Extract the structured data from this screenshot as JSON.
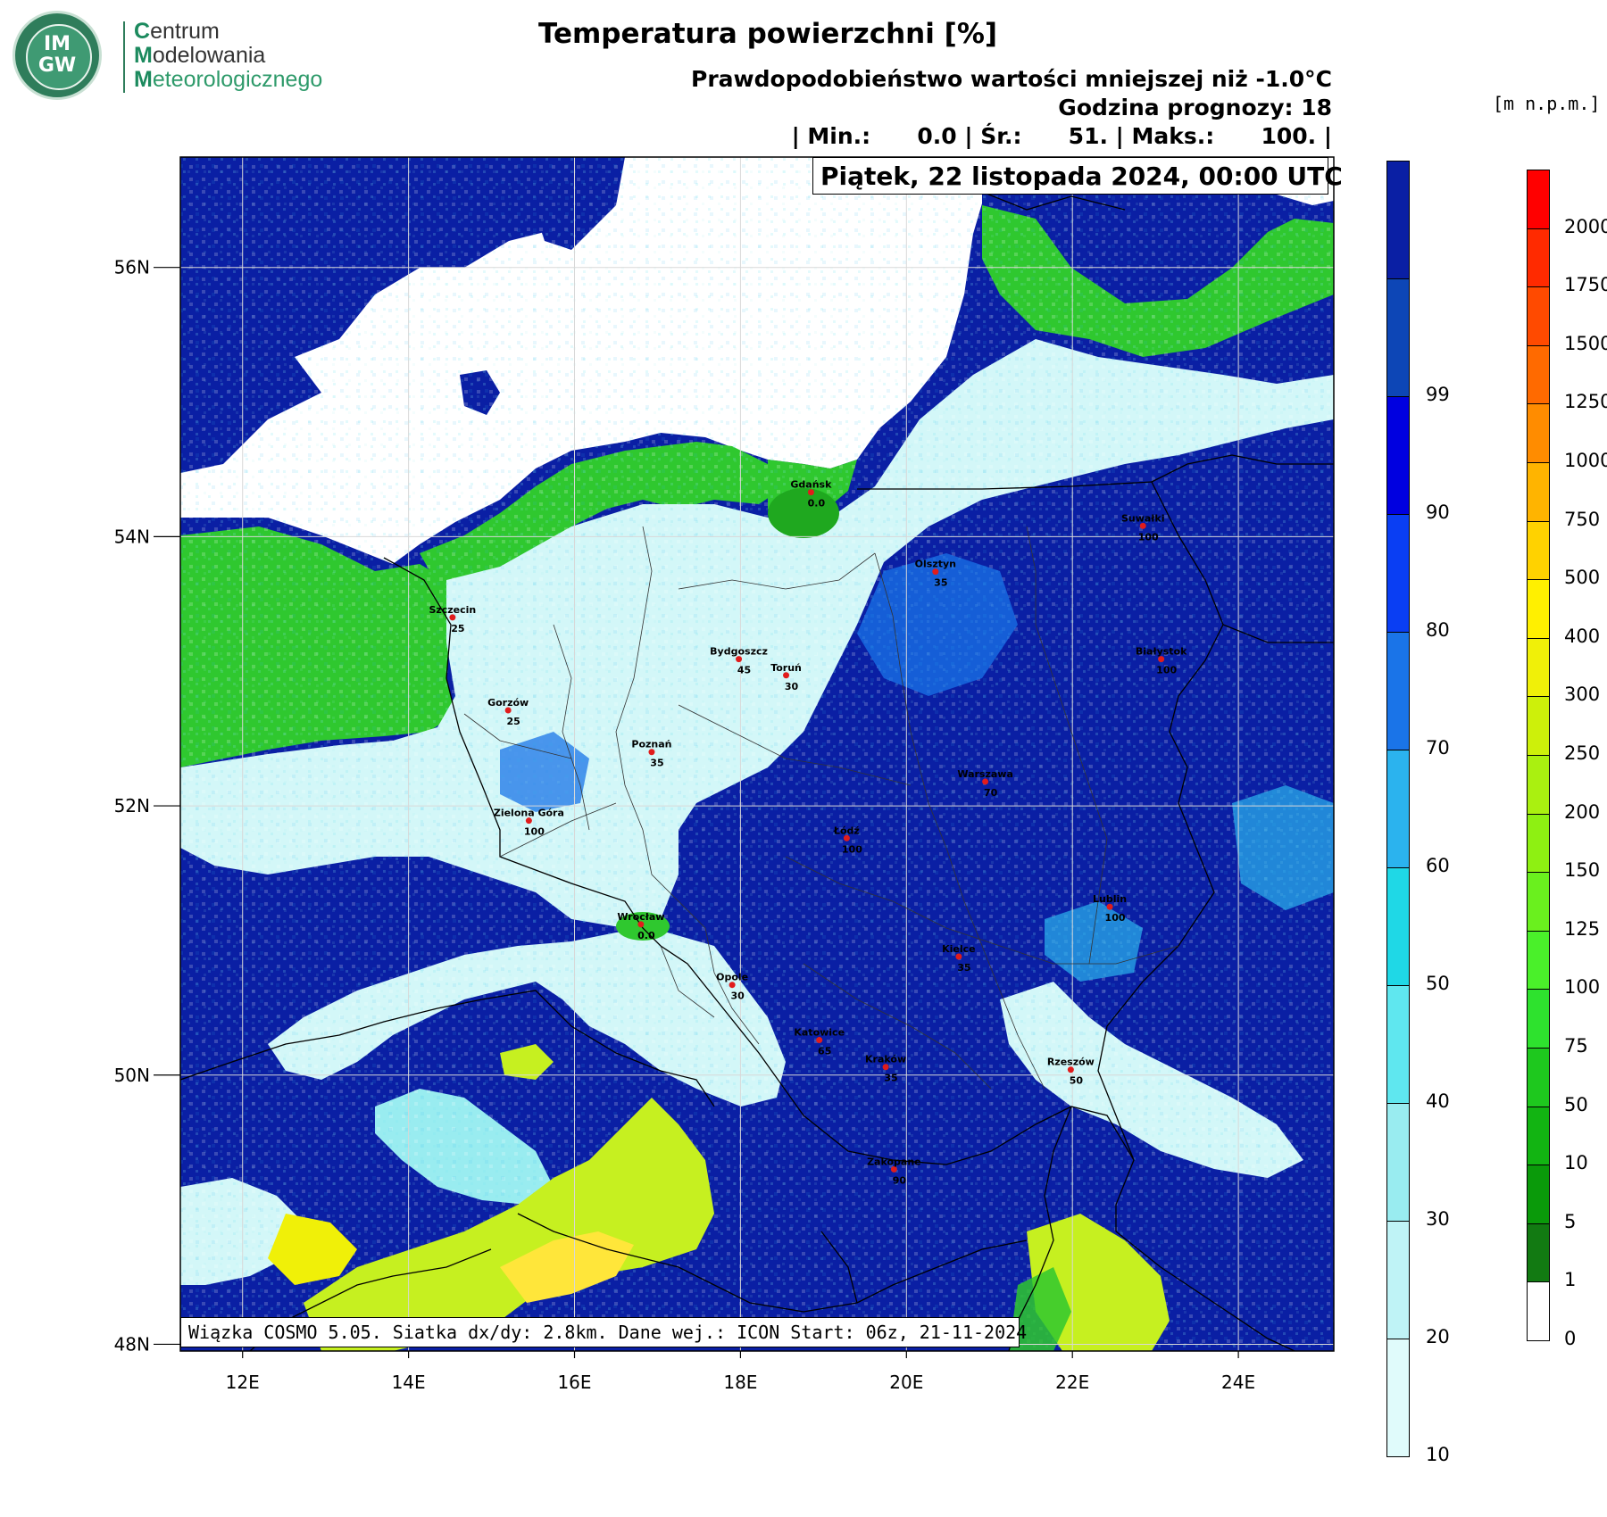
{
  "logo": {
    "mark_line1": "IM",
    "mark_line2": "GW",
    "line1_initial": "C",
    "line1_rest": "entrum",
    "line2_initial": "M",
    "line2_rest": "odelowania",
    "line3_initial": "M",
    "line3_rest": "eteorologicznego"
  },
  "header": {
    "title": "Temperatura powierzchni [%]",
    "subtitle": "Prawdopodobieństwo wartości mniejszej niż -1.0°C",
    "forecast_hour": "Godzina prognozy: 18",
    "stats": "| Min.:      0.0 | Śr.:      51. | Maks.:      100. |",
    "date": "Piątek, 22 listopada 2024, 00:00 UTC"
  },
  "footer": {
    "info": "Wiązka COSMO 5.05. Siatka dx/dy: 2.8km. Dane wej.: ICON Start: 06z, 21-11-2024"
  },
  "units_label": "[m n.p.m.]",
  "axes": {
    "lat_labels": [
      "56N",
      "54N",
      "52N",
      "50N",
      "48N"
    ],
    "lat_values": [
      56,
      54,
      52,
      50,
      48
    ],
    "lon_labels": [
      "12E",
      "14E",
      "16E",
      "18E",
      "20E",
      "22E",
      "24E"
    ],
    "lon_values": [
      12,
      14,
      16,
      18,
      20,
      22,
      24
    ],
    "lon_range": [
      11.25,
      25.15
    ],
    "lat_range": [
      47.95,
      56.82
    ]
  },
  "cities": [
    {
      "name": "Gdańsk",
      "value": "0.0",
      "lon": 18.85,
      "lat": 54.33
    },
    {
      "name": "Suwałki",
      "value": "100",
      "lon": 22.85,
      "lat": 54.08
    },
    {
      "name": "Olsztyn",
      "value": "35",
      "lon": 20.35,
      "lat": 53.74
    },
    {
      "name": "Szczecin",
      "value": "25",
      "lon": 14.53,
      "lat": 53.4
    },
    {
      "name": "Bydgoszcz",
      "value": "45",
      "lon": 17.98,
      "lat": 53.09
    },
    {
      "name": "Toruń",
      "value": "30",
      "lon": 18.55,
      "lat": 52.97
    },
    {
      "name": "Białystok",
      "value": "100",
      "lon": 23.07,
      "lat": 53.09
    },
    {
      "name": "Gorzów",
      "value": "25",
      "lon": 15.2,
      "lat": 52.71
    },
    {
      "name": "Poznań",
      "value": "35",
      "lon": 16.93,
      "lat": 52.4
    },
    {
      "name": "Warszawa",
      "value": "70",
      "lon": 20.95,
      "lat": 52.18
    },
    {
      "name": "Zielona Góra",
      "value": "100",
      "lon": 15.45,
      "lat": 51.89
    },
    {
      "name": "Łódź",
      "value": "100",
      "lon": 19.28,
      "lat": 51.76
    },
    {
      "name": "Lublin",
      "value": "100",
      "lon": 22.45,
      "lat": 51.25
    },
    {
      "name": "Wrocław",
      "value": "0.0",
      "lon": 16.8,
      "lat": 51.12
    },
    {
      "name": "Kielce",
      "value": "35",
      "lon": 20.63,
      "lat": 50.88
    },
    {
      "name": "Opole",
      "value": "30",
      "lon": 17.9,
      "lat": 50.67
    },
    {
      "name": "Katowice",
      "value": "65",
      "lon": 18.95,
      "lat": 50.26
    },
    {
      "name": "Kraków",
      "value": "35",
      "lon": 19.75,
      "lat": 50.06
    },
    {
      "name": "Rzeszów",
      "value": "50",
      "lon": 21.98,
      "lat": 50.04
    },
    {
      "name": "Zakopane",
      "value": "90",
      "lon": 19.85,
      "lat": 49.3
    }
  ],
  "legend_probability": {
    "labels": [
      "10",
      "20",
      "30",
      "40",
      "50",
      "60",
      "70",
      "80",
      "90",
      "99"
    ],
    "colors": [
      "#e0fbfb",
      "#bff3f6",
      "#99ecf0",
      "#5fe7ef",
      "#1fd8e6",
      "#2bb3ee",
      "#1a74e8",
      "#0a3ef3",
      "#0000e0",
      "#0d46b6",
      "#0a1fa4"
    ]
  },
  "legend_elevation": {
    "labels": [
      "0",
      "1",
      "5",
      "10",
      "50",
      "75",
      "100",
      "125",
      "150",
      "200",
      "250",
      "300",
      "400",
      "500",
      "750",
      "1000",
      "1250",
      "1500",
      "1750",
      "2000"
    ],
    "colors": [
      "#ffffff",
      "#127a12",
      "#0a9a0a",
      "#12b412",
      "#1ec81e",
      "#2ee22e",
      "#4af02a",
      "#6af01e",
      "#8ef012",
      "#aaf010",
      "#cdf00a",
      "#f0f008",
      "#fff000",
      "#ffd200",
      "#ffb400",
      "#ff8c00",
      "#ff6a00",
      "#ff4a00",
      "#ff2a00",
      "#ff0000"
    ]
  },
  "colors": {
    "sea": "#ffffff",
    "dark_blue": "#0a1fa4",
    "light_cyan": "#d3f7f8",
    "green": "#2fc82f",
    "yellow_green": "#c6f020",
    "city_dot": "#e11c1c"
  }
}
